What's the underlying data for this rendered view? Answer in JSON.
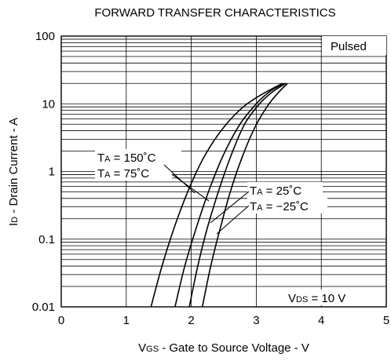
{
  "chart_data": {
    "type": "line",
    "title": "FORWARD TRANSFER CHARACTERISTICS",
    "xlabel": "V_GS - Gate to Source Voltage - V",
    "ylabel": "I_D - Drain Current - A",
    "xlim": [
      0,
      5
    ],
    "ylim": [
      0.01,
      100
    ],
    "yscale": "log",
    "grid": true,
    "x_ticks": [
      "0",
      "1",
      "2",
      "3",
      "4",
      "5"
    ],
    "y_ticks": [
      "0.01",
      "0.1",
      "1",
      "10",
      "100"
    ],
    "annotations": {
      "pulsed": "Pulsed",
      "vds": "V_DS = 10 V"
    },
    "series": [
      {
        "name": "T_A = 150°C",
        "x": [
          1.38,
          1.55,
          1.75,
          1.98,
          2.22,
          2.5,
          2.8,
          3.1,
          3.4
        ],
        "y": [
          0.01,
          0.04,
          0.16,
          0.6,
          1.8,
          4.5,
          9,
          14,
          20
        ]
      },
      {
        "name": "T_A = 75°C",
        "x": [
          1.75,
          1.9,
          2.08,
          2.28,
          2.5,
          2.75,
          3.0,
          3.2,
          3.42
        ],
        "y": [
          0.01,
          0.04,
          0.15,
          0.55,
          1.8,
          5,
          10,
          15,
          20
        ]
      },
      {
        "name": "T_A = 25°C",
        "x": [
          1.97,
          2.1,
          2.25,
          2.43,
          2.62,
          2.82,
          3.05,
          3.25,
          3.45
        ],
        "y": [
          0.01,
          0.04,
          0.15,
          0.55,
          1.8,
          5,
          10,
          15,
          20
        ]
      },
      {
        "name": "T_A = −25°C",
        "x": [
          2.17,
          2.3,
          2.45,
          2.6,
          2.78,
          2.98,
          3.18,
          3.35,
          3.48
        ],
        "y": [
          0.01,
          0.04,
          0.15,
          0.5,
          1.6,
          4.5,
          9.5,
          15,
          20
        ]
      }
    ]
  },
  "labels": {
    "title": "FORWARD TRANSFER CHARACTERISTICS",
    "xlabel_main": "V",
    "xlabel_sub": "GS",
    "xlabel_rest": " - Gate to Source Voltage - V",
    "ylabel_main": "I",
    "ylabel_sub": "D",
    "ylabel_rest": " - Drain Current - A",
    "pulsed": "Pulsed",
    "vds_main": "V",
    "vds_sub": "DS",
    "vds_rest": " = 10 V",
    "ta_main": "T",
    "ta_sub": "A",
    "ta150_rest": " = 150˚C",
    "ta75_rest": " = 75˚C",
    "ta25_rest": " = 25˚C",
    "tam25_rest": " = −25˚C"
  }
}
